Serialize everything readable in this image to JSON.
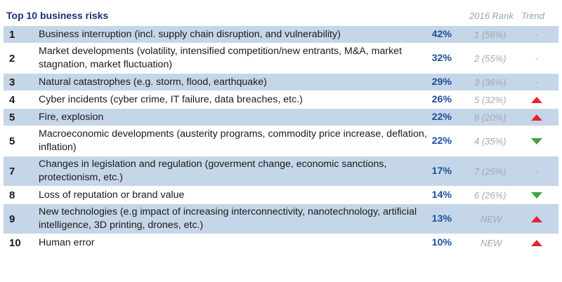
{
  "header": {
    "title": "Top 10 business risks",
    "col_rank": "2016 Rank",
    "col_trend": "Trend"
  },
  "rows": [
    {
      "rank": "1",
      "risk": "Business interruption (incl. supply chain disruption, and vulnerability)",
      "pct": "42%",
      "prev": "1 (56%)",
      "trend": "same",
      "trend_text": "-"
    },
    {
      "rank": "2",
      "risk": "Market developments (volatility, intensified competition/new entrants, M&A, market stagnation, market fluctuation)",
      "pct": "32%",
      "prev": "2 (55%)",
      "trend": "same",
      "trend_text": "-"
    },
    {
      "rank": "3",
      "risk": "Natural catastrophes (e.g. storm, flood, earthquake)",
      "pct": "29%",
      "prev": "3 (36%)",
      "trend": "same",
      "trend_text": "-"
    },
    {
      "rank": "4",
      "risk": "Cyber incidents (cyber crime, IT failure, data breaches, etc.)",
      "pct": "26%",
      "prev": "5 (32%)",
      "trend": "up",
      "trend_text": ""
    },
    {
      "rank": "5",
      "risk": "Fire, explosion",
      "pct": "22%",
      "prev": "8 (20%)",
      "trend": "up",
      "trend_text": ""
    },
    {
      "rank": "5",
      "risk": "Macroeconomic developments (austerity programs, commodity price increase, deflation, inflation)",
      "pct": "22%",
      "prev": "4 (35%)",
      "trend": "down",
      "trend_text": ""
    },
    {
      "rank": "7",
      "risk": "Changes in legislation and regulation (goverment change, economic sanctions, protectionism, etc.)",
      "pct": "17%",
      "prev": "7 (25%)",
      "trend": "same",
      "trend_text": "-"
    },
    {
      "rank": "8",
      "risk": "Loss of reputation or brand value",
      "pct": "14%",
      "prev": "6 (26%)",
      "trend": "down",
      "trend_text": ""
    },
    {
      "rank": "9",
      "risk": "New technologies (e.g impact of increasing interconnectivity, nanotechnology, artificial intelligence, 3D printing, drones, etc.)",
      "pct": "13%",
      "prev": "NEW",
      "trend": "up",
      "trend_text": ""
    },
    {
      "rank": "10",
      "risk": "Human error",
      "pct": "10%",
      "prev": "NEW",
      "trend": "up",
      "trend_text": ""
    }
  ],
  "colors": {
    "title": "#1b2f7a",
    "shade": "#c5d6e8",
    "pct": "#1c4f9c",
    "trend_up": "#e3262c",
    "trend_down": "#3ea33b"
  }
}
